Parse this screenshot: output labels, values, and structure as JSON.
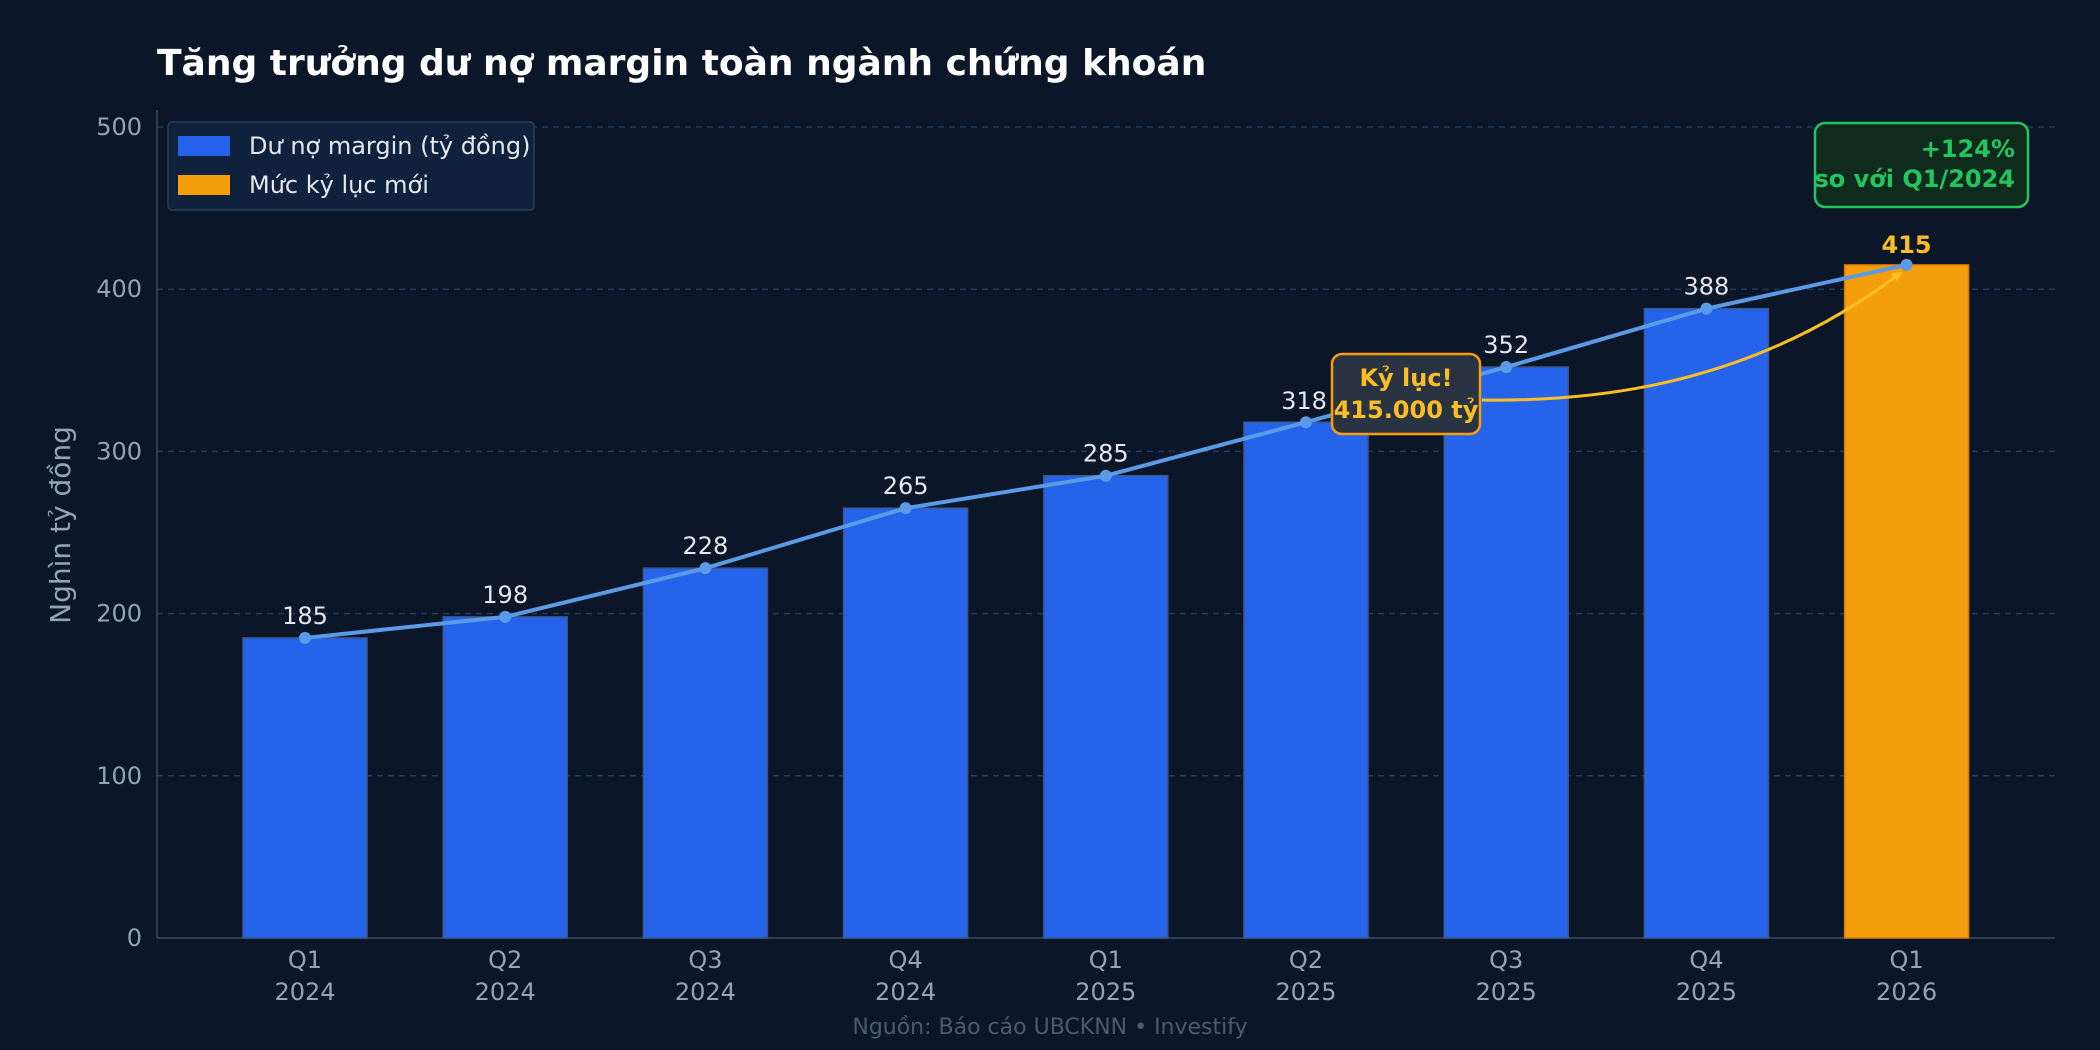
{
  "colors": {
    "background": "#0b1628",
    "bar": "#2563eb",
    "record_bar": "#f59e0b",
    "line": "#5b9be6",
    "grid": "#1e3a5f",
    "growth": "#22c55e",
    "record_text": "#fbbf24"
  },
  "chart_data": {
    "type": "bar",
    "title": "Tăng trưởng dư nợ margin toàn ngành chứng khoán",
    "ylabel": "Nghìn tỷ đồng",
    "xlabel": "",
    "ylim": [
      0,
      500
    ],
    "yticks": [
      "0",
      "100",
      "200",
      "300",
      "400",
      "500"
    ],
    "grid": true,
    "categories": [
      [
        "Q1",
        "2024"
      ],
      [
        "Q2",
        "2024"
      ],
      [
        "Q3",
        "2024"
      ],
      [
        "Q4",
        "2024"
      ],
      [
        "Q1",
        "2025"
      ],
      [
        "Q2",
        "2025"
      ],
      [
        "Q3",
        "2025"
      ],
      [
        "Q4",
        "2025"
      ],
      [
        "Q1",
        "2026"
      ]
    ],
    "values": [
      185,
      198,
      228,
      265,
      285,
      318,
      352,
      388,
      415
    ],
    "value_labels": [
      "185",
      "198",
      "228",
      "265",
      "285",
      "318",
      "352",
      "388",
      "415"
    ],
    "highlight_index": 8,
    "overlay_line": true,
    "legend": {
      "position": "top-left",
      "entries": [
        {
          "label": "Dư nợ margin (tỷ đồng)",
          "color": "#2563eb"
        },
        {
          "label": "Mức kỷ lục mới",
          "color": "#f59e0b"
        }
      ]
    },
    "annotations": {
      "record": {
        "line1": "Kỷ lục!",
        "line2": "415.000 tỷ"
      },
      "growth": {
        "line1": "+124%",
        "line2": "so với Q1/2024"
      }
    }
  },
  "source": "Nguồn: Báo cáo UBCKNN • Investify"
}
